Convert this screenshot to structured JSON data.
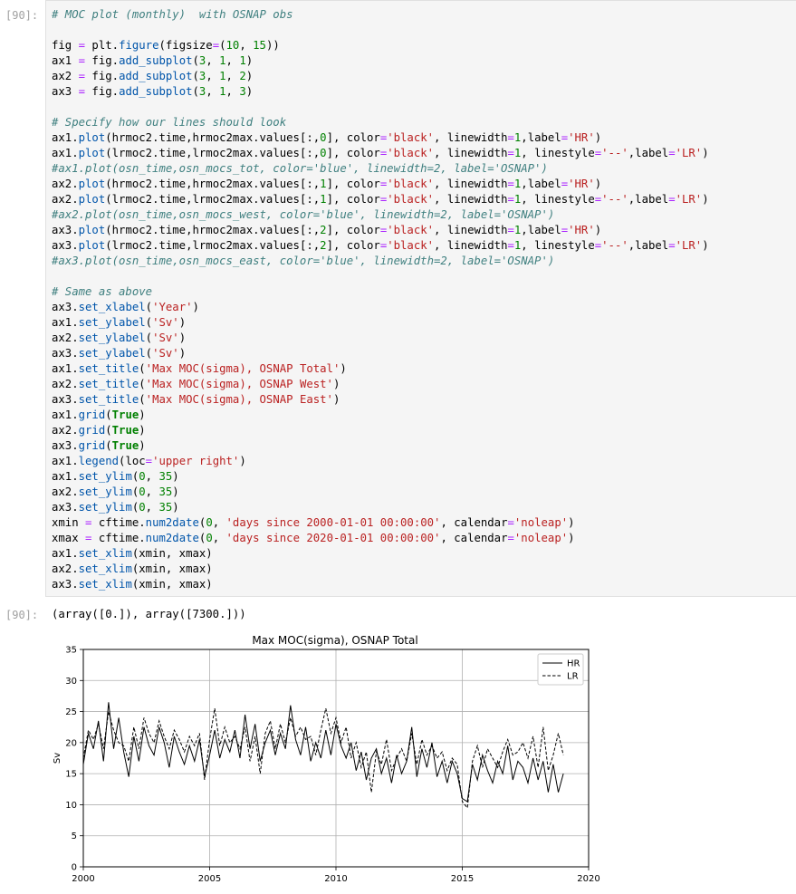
{
  "cell": {
    "input_prompt": "[90]:",
    "output_prompt": "[90]:",
    "code_lines": [
      "# MOC plot (monthly)  with OSNAP obs",
      "",
      "fig = plt.figure(figsize=(10, 15))",
      "ax1 = fig.add_subplot(3, 1, 1)",
      "ax2 = fig.add_subplot(3, 1, 2)",
      "ax3 = fig.add_subplot(3, 1, 3)",
      "",
      "# Specify how our lines should look",
      "ax1.plot(hrmoc2.time,hrmoc2max.values[:,0], color='black', linewidth=1,label='HR')",
      "ax1.plot(lrmoc2.time,lrmoc2max.values[:,0], color='black', linewidth=1, linestyle='--',label='LR')",
      "#ax1.plot(osn_time,osn_mocs_tot, color='blue', linewidth=2, label='OSNAP')",
      "ax2.plot(hrmoc2.time,hrmoc2max.values[:,1], color='black', linewidth=1,label='HR')",
      "ax2.plot(lrmoc2.time,lrmoc2max.values[:,1], color='black', linewidth=1, linestyle='--',label='LR')",
      "#ax2.plot(osn_time,osn_mocs_west, color='blue', linewidth=2, label='OSNAP')",
      "ax3.plot(hrmoc2.time,hrmoc2max.values[:,2], color='black', linewidth=1,label='HR')",
      "ax3.plot(lrmoc2.time,lrmoc2max.values[:,2], color='black', linewidth=1, linestyle='--',label='LR')",
      "#ax3.plot(osn_time,osn_mocs_east, color='blue', linewidth=2, label='OSNAP')",
      "",
      "# Same as above",
      "ax3.set_xlabel('Year')",
      "ax1.set_ylabel('Sv')",
      "ax2.set_ylabel('Sv')",
      "ax3.set_ylabel('Sv')",
      "ax1.set_title('Max MOC(sigma), OSNAP Total')",
      "ax2.set_title('Max MOC(sigma), OSNAP West')",
      "ax3.set_title('Max MOC(sigma), OSNAP East')",
      "ax1.grid(True)",
      "ax2.grid(True)",
      "ax3.grid(True)",
      "ax1.legend(loc='upper right')",
      "ax1.set_ylim(0, 35)",
      "ax2.set_ylim(0, 35)",
      "ax3.set_ylim(0, 35)",
      "xmin = cftime.num2date(0, 'days since 2000-01-01 00:00:00', calendar='noleap')",
      "xmax = cftime.num2date(0, 'days since 2020-01-01 00:00:00', calendar='noleap')",
      "ax1.set_xlim(xmin, xmax)",
      "ax2.set_xlim(xmin, xmax)",
      "ax3.set_xlim(xmin, xmax)"
    ],
    "output_text": "(array([0.]), array([7300.]))"
  },
  "chart_data": {
    "type": "line",
    "title": "Max MOC(sigma), OSNAP Total",
    "xlabel": "",
    "ylabel": "Sv",
    "xlim": [
      2000,
      2020
    ],
    "ylim": [
      0,
      35
    ],
    "xticks": [
      2000,
      2005,
      2010,
      2015,
      2020
    ],
    "yticks": [
      0,
      5,
      10,
      15,
      20,
      25,
      30,
      35
    ],
    "grid": true,
    "legend_position": "top-right",
    "series": [
      {
        "name": "HR",
        "style": "solid",
        "x": [
          2000.0,
          2000.2,
          2000.4,
          2000.6,
          2000.8,
          2001.0,
          2001.2,
          2001.4,
          2001.6,
          2001.8,
          2002.0,
          2002.2,
          2002.4,
          2002.6,
          2002.8,
          2003.0,
          2003.2,
          2003.4,
          2003.6,
          2003.8,
          2004.0,
          2004.2,
          2004.4,
          2004.6,
          2004.8,
          2005.0,
          2005.2,
          2005.4,
          2005.6,
          2005.8,
          2006.0,
          2006.2,
          2006.4,
          2006.6,
          2006.8,
          2007.0,
          2007.2,
          2007.4,
          2007.6,
          2007.8,
          2008.0,
          2008.2,
          2008.4,
          2008.6,
          2008.8,
          2009.0,
          2009.2,
          2009.4,
          2009.6,
          2009.8,
          2010.0,
          2010.2,
          2010.4,
          2010.6,
          2010.8,
          2011.0,
          2011.2,
          2011.4,
          2011.6,
          2011.8,
          2012.0,
          2012.2,
          2012.4,
          2012.6,
          2012.8,
          2013.0,
          2013.2,
          2013.4,
          2013.6,
          2013.8,
          2014.0,
          2014.2,
          2014.4,
          2014.6,
          2014.8,
          2015.0,
          2015.2,
          2015.4,
          2015.6,
          2015.8,
          2016.0,
          2016.2,
          2016.4,
          2016.6,
          2016.8,
          2017.0,
          2017.2,
          2017.4,
          2017.6,
          2017.8,
          2018.0,
          2018.2,
          2018.4,
          2018.6,
          2018.8,
          2019.0
        ],
        "y": [
          16.5,
          21.5,
          19.0,
          23.5,
          17.0,
          26.5,
          19.0,
          24.0,
          18.5,
          14.5,
          21.0,
          17.0,
          22.5,
          19.5,
          18.0,
          22.5,
          20.0,
          16.0,
          21.0,
          18.5,
          16.5,
          19.5,
          17.0,
          20.5,
          14.5,
          18.0,
          22.0,
          17.5,
          20.5,
          18.5,
          22.0,
          17.5,
          24.5,
          19.0,
          23.0,
          17.0,
          20.0,
          22.0,
          18.0,
          21.5,
          19.0,
          26.0,
          20.5,
          18.0,
          22.5,
          17.0,
          20.0,
          17.5,
          22.0,
          18.0,
          23.0,
          19.5,
          17.5,
          20.0,
          15.5,
          18.5,
          14.0,
          17.5,
          19.0,
          15.0,
          17.5,
          13.5,
          18.0,
          15.0,
          17.0,
          22.5,
          14.5,
          19.0,
          16.0,
          20.0,
          14.5,
          17.0,
          13.5,
          17.0,
          15.0,
          11.0,
          10.5,
          16.5,
          14.0,
          18.0,
          15.5,
          13.5,
          17.0,
          15.0,
          19.5,
          14.0,
          17.0,
          16.0,
          13.5,
          17.5,
          14.0,
          17.0,
          12.0,
          16.5,
          12.0,
          15.0
        ]
      },
      {
        "name": "LR",
        "style": "dashed",
        "x": [
          2000.0,
          2000.2,
          2000.4,
          2000.6,
          2000.8,
          2001.0,
          2001.2,
          2001.4,
          2001.6,
          2001.8,
          2002.0,
          2002.2,
          2002.4,
          2002.6,
          2002.8,
          2003.0,
          2003.2,
          2003.4,
          2003.6,
          2003.8,
          2004.0,
          2004.2,
          2004.4,
          2004.6,
          2004.8,
          2005.0,
          2005.2,
          2005.4,
          2005.6,
          2005.8,
          2006.0,
          2006.2,
          2006.4,
          2006.6,
          2006.8,
          2007.0,
          2007.2,
          2007.4,
          2007.6,
          2007.8,
          2008.0,
          2008.2,
          2008.4,
          2008.6,
          2008.8,
          2009.0,
          2009.2,
          2009.4,
          2009.6,
          2009.8,
          2010.0,
          2010.2,
          2010.4,
          2010.6,
          2010.8,
          2011.0,
          2011.2,
          2011.4,
          2011.6,
          2011.8,
          2012.0,
          2012.2,
          2012.4,
          2012.6,
          2012.8,
          2013.0,
          2013.2,
          2013.4,
          2013.6,
          2013.8,
          2014.0,
          2014.2,
          2014.4,
          2014.6,
          2014.8,
          2015.0,
          2015.2,
          2015.4,
          2015.6,
          2015.8,
          2016.0,
          2016.2,
          2016.4,
          2016.6,
          2016.8,
          2017.0,
          2017.2,
          2017.4,
          2017.6,
          2017.8,
          2018.0,
          2018.2,
          2018.4,
          2018.6,
          2018.8,
          2019.0
        ],
        "y": [
          17.5,
          22.0,
          20.5,
          23.0,
          19.0,
          25.0,
          22.0,
          20.0,
          19.5,
          17.0,
          22.5,
          19.0,
          24.0,
          21.5,
          20.0,
          23.5,
          21.0,
          19.0,
          22.0,
          20.5,
          18.5,
          21.0,
          19.5,
          21.5,
          14.0,
          20.5,
          25.5,
          19.5,
          22.5,
          20.0,
          21.0,
          19.0,
          22.5,
          17.0,
          21.0,
          15.0,
          21.5,
          23.5,
          19.0,
          23.0,
          20.0,
          24.0,
          21.0,
          22.5,
          20.5,
          21.0,
          18.0,
          22.0,
          25.5,
          21.5,
          24.0,
          20.0,
          22.5,
          17.5,
          20.0,
          16.0,
          18.5,
          12.0,
          18.5,
          16.5,
          20.5,
          15.5,
          17.5,
          19.0,
          17.0,
          21.5,
          16.5,
          20.5,
          18.0,
          19.5,
          17.5,
          18.5,
          15.5,
          17.5,
          16.5,
          10.5,
          9.5,
          17.0,
          19.5,
          16.0,
          19.0,
          17.5,
          16.0,
          18.5,
          20.5,
          18.0,
          18.5,
          20.0,
          17.5,
          21.0,
          16.0,
          22.5,
          15.5,
          18.0,
          21.5,
          18.0
        ]
      }
    ]
  }
}
